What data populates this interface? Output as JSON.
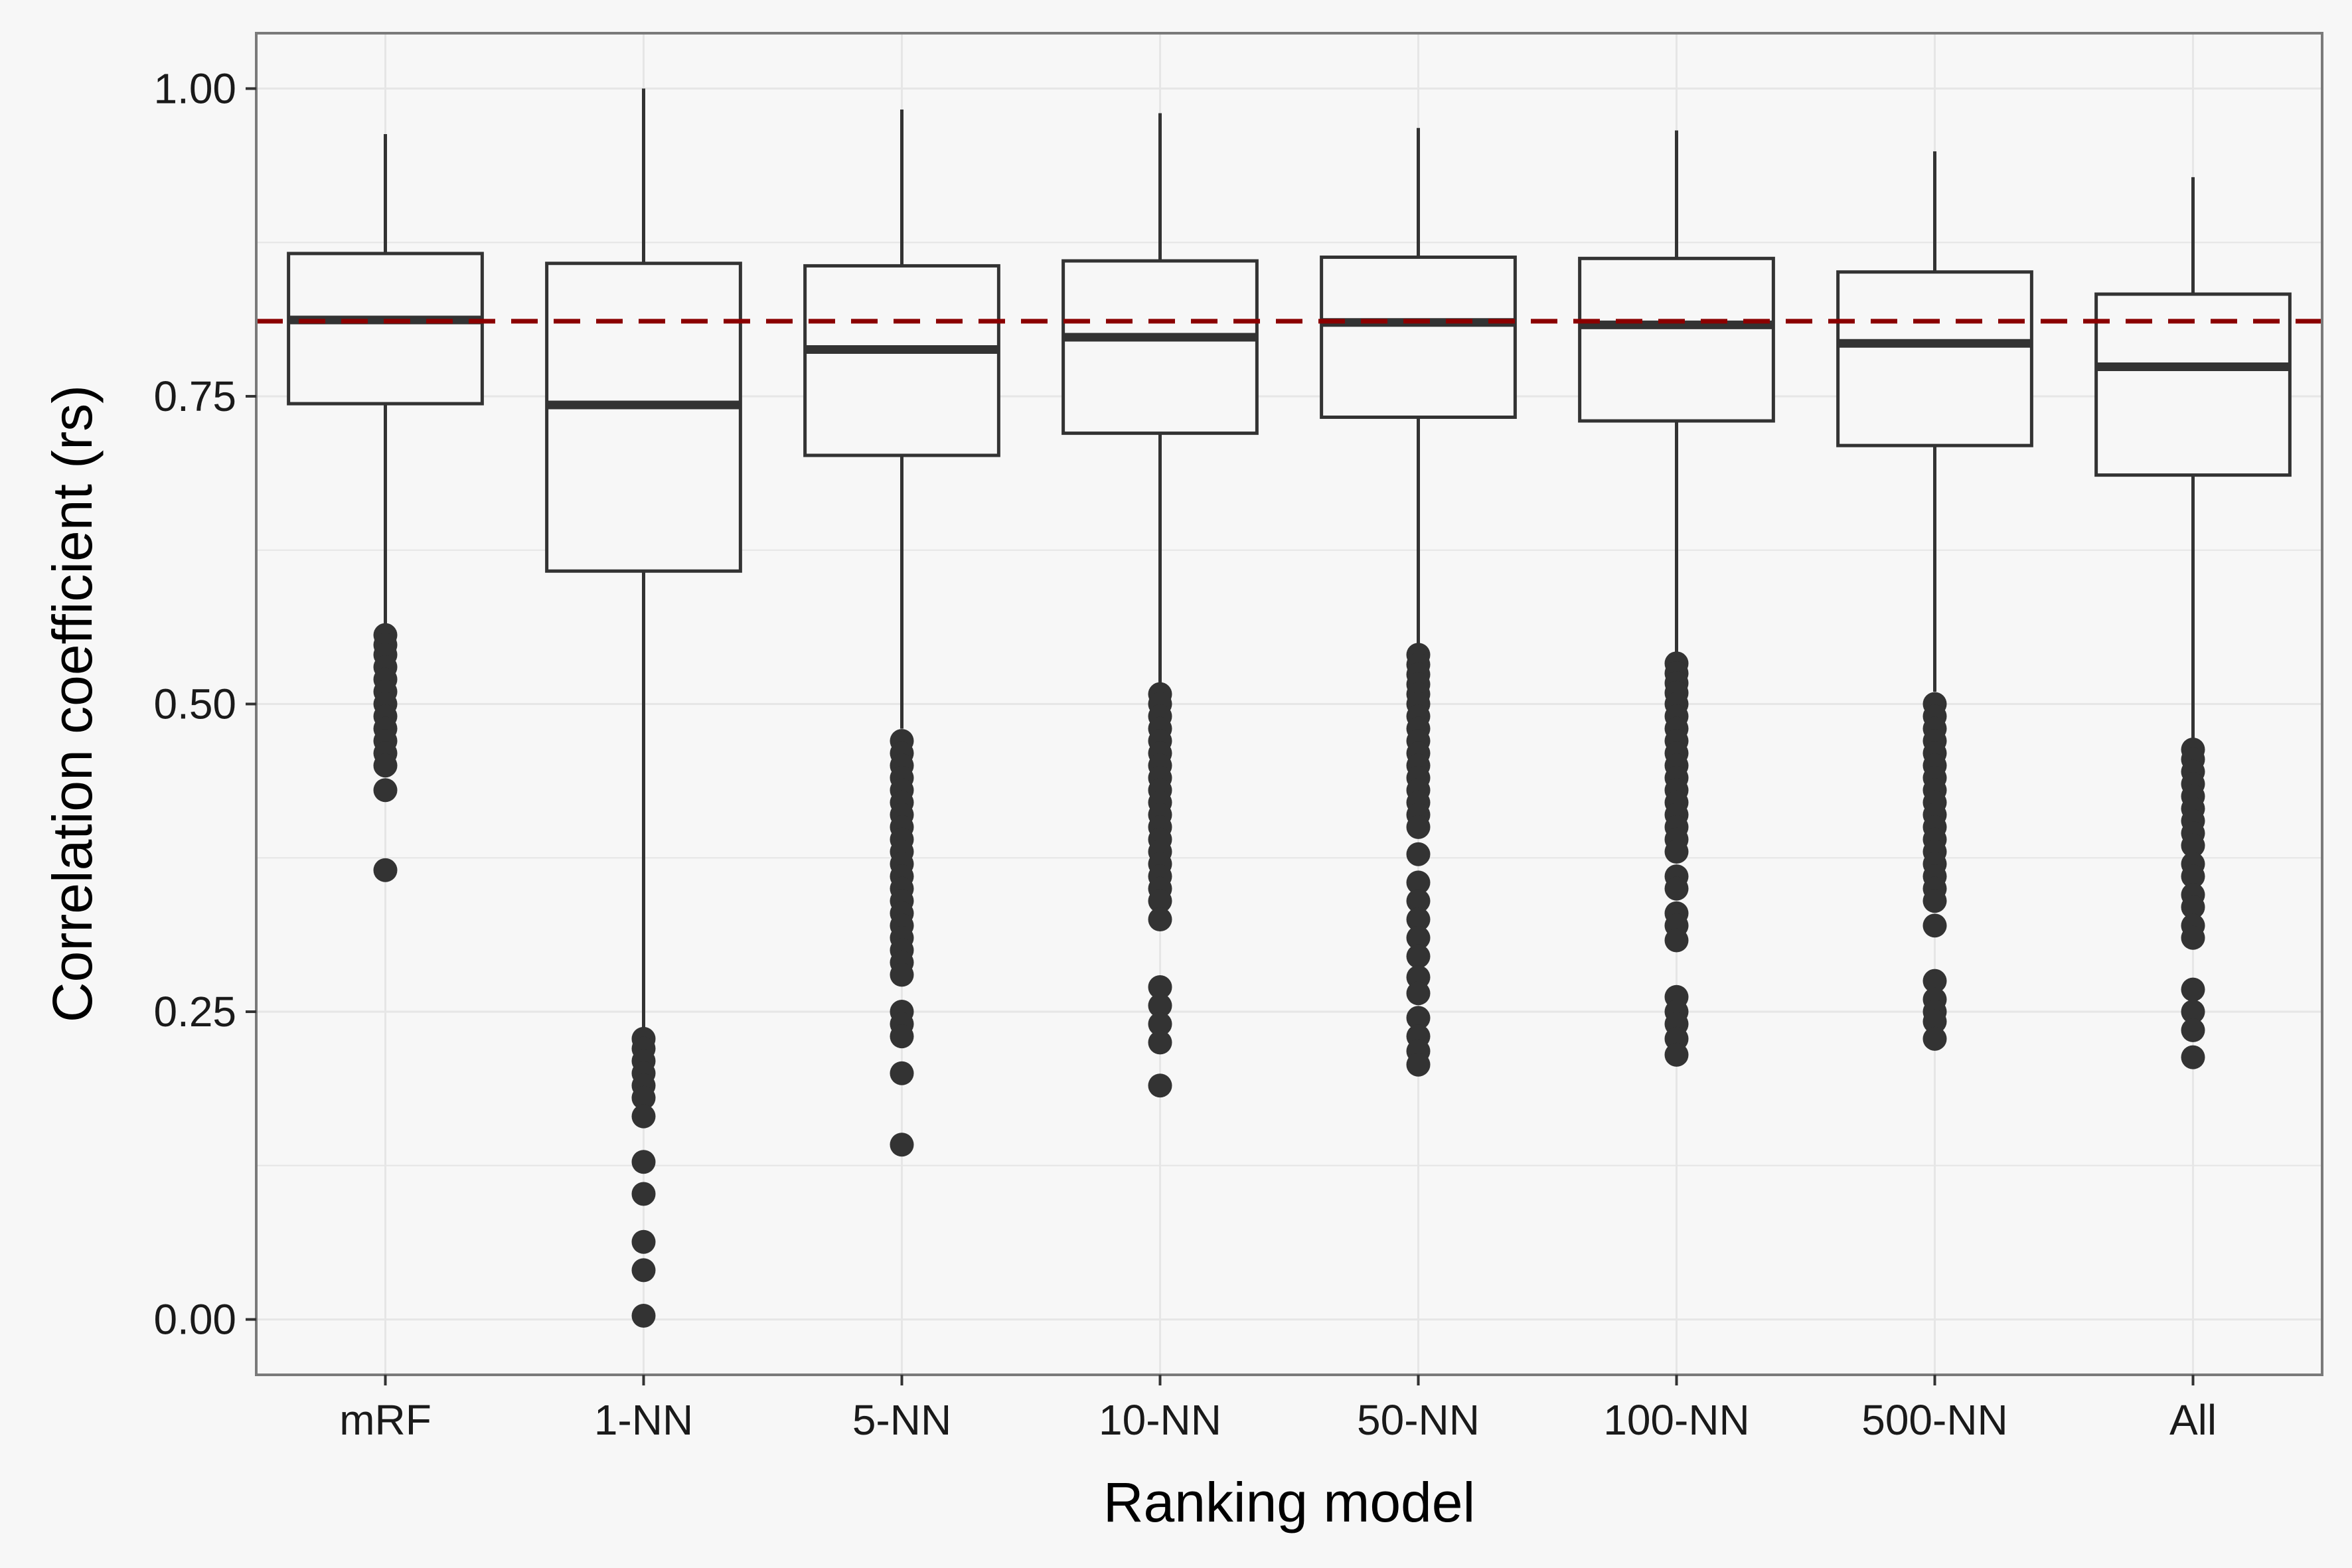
{
  "chart_data": {
    "type": "box",
    "xlabel": "Ranking model",
    "ylabel": "Correlation coefficient (rs)",
    "ylim": [
      -0.045,
      1.045
    ],
    "yticks": [
      {
        "value": 0.0,
        "label": "0.00"
      },
      {
        "value": 0.25,
        "label": "0.25"
      },
      {
        "value": 0.5,
        "label": "0.50"
      },
      {
        "value": 0.75,
        "label": "0.75"
      },
      {
        "value": 1.0,
        "label": "1.00"
      }
    ],
    "grid": true,
    "reference_line": {
      "value": 0.811,
      "color": "#8b0000",
      "style": "dashed"
    },
    "categories": [
      "mRF",
      "1-NN",
      "5-NN",
      "10-NN",
      "50-NN",
      "100-NN",
      "500-NN",
      "All"
    ],
    "boxes": [
      {
        "label": "mRF",
        "whisker_low": 0.565,
        "q1": 0.744,
        "median": 0.812,
        "q3": 0.866,
        "whisker_high": 0.963,
        "outliers": [
          0.556,
          0.548,
          0.54,
          0.53,
          0.52,
          0.51,
          0.5,
          0.49,
          0.48,
          0.47,
          0.46,
          0.45,
          0.43,
          0.365
        ]
      },
      {
        "label": "1-NN",
        "whisker_low": 0.235,
        "q1": 0.608,
        "median": 0.743,
        "q3": 0.858,
        "whisker_high": 1.0,
        "outliers": [
          0.228,
          0.22,
          0.21,
          0.2,
          0.19,
          0.18,
          0.165,
          0.128,
          0.102,
          0.063,
          0.04,
          0.003
        ]
      },
      {
        "label": "5-NN",
        "whisker_low": 0.48,
        "q1": 0.702,
        "median": 0.788,
        "q3": 0.856,
        "whisker_high": 0.983,
        "outliers": [
          0.47,
          0.46,
          0.45,
          0.44,
          0.43,
          0.42,
          0.41,
          0.4,
          0.39,
          0.38,
          0.37,
          0.36,
          0.35,
          0.34,
          0.33,
          0.32,
          0.31,
          0.3,
          0.29,
          0.28,
          0.25,
          0.24,
          0.23,
          0.2,
          0.142
        ]
      },
      {
        "label": "10-NN",
        "whisker_low": 0.515,
        "q1": 0.72,
        "median": 0.798,
        "q3": 0.86,
        "whisker_high": 0.98,
        "outliers": [
          0.508,
          0.5,
          0.49,
          0.48,
          0.47,
          0.46,
          0.45,
          0.44,
          0.43,
          0.42,
          0.41,
          0.4,
          0.39,
          0.38,
          0.37,
          0.36,
          0.35,
          0.34,
          0.325,
          0.27,
          0.255,
          0.24,
          0.225,
          0.19
        ]
      },
      {
        "label": "50-NN",
        "whisker_low": 0.548,
        "q1": 0.733,
        "median": 0.81,
        "q3": 0.863,
        "whisker_high": 0.968,
        "outliers": [
          0.54,
          0.532,
          0.524,
          0.516,
          0.508,
          0.5,
          0.49,
          0.48,
          0.47,
          0.46,
          0.45,
          0.44,
          0.43,
          0.42,
          0.41,
          0.4,
          0.378,
          0.355,
          0.34,
          0.325,
          0.31,
          0.295,
          0.278,
          0.265,
          0.245,
          0.23,
          0.218,
          0.207
        ]
      },
      {
        "label": "100-NN",
        "whisker_low": 0.54,
        "q1": 0.73,
        "median": 0.808,
        "q3": 0.862,
        "whisker_high": 0.966,
        "outliers": [
          0.533,
          0.525,
          0.517,
          0.509,
          0.5,
          0.49,
          0.48,
          0.47,
          0.46,
          0.45,
          0.44,
          0.43,
          0.42,
          0.41,
          0.4,
          0.39,
          0.38,
          0.36,
          0.35,
          0.33,
          0.32,
          0.308,
          0.262,
          0.25,
          0.24,
          0.228,
          0.215
        ]
      },
      {
        "label": "500-NN",
        "whisker_low": 0.51,
        "q1": 0.71,
        "median": 0.793,
        "q3": 0.851,
        "whisker_high": 0.949,
        "outliers": [
          0.5,
          0.49,
          0.48,
          0.47,
          0.46,
          0.45,
          0.44,
          0.43,
          0.42,
          0.41,
          0.4,
          0.39,
          0.38,
          0.37,
          0.36,
          0.35,
          0.34,
          0.32,
          0.275,
          0.26,
          0.25,
          0.242,
          0.228
        ]
      },
      {
        "label": "All",
        "whisker_low": 0.47,
        "q1": 0.686,
        "median": 0.774,
        "q3": 0.833,
        "whisker_high": 0.928,
        "outliers": [
          0.463,
          0.455,
          0.445,
          0.435,
          0.425,
          0.415,
          0.405,
          0.395,
          0.385,
          0.37,
          0.36,
          0.345,
          0.335,
          0.32,
          0.31,
          0.268,
          0.25,
          0.235,
          0.213
        ]
      }
    ]
  }
}
